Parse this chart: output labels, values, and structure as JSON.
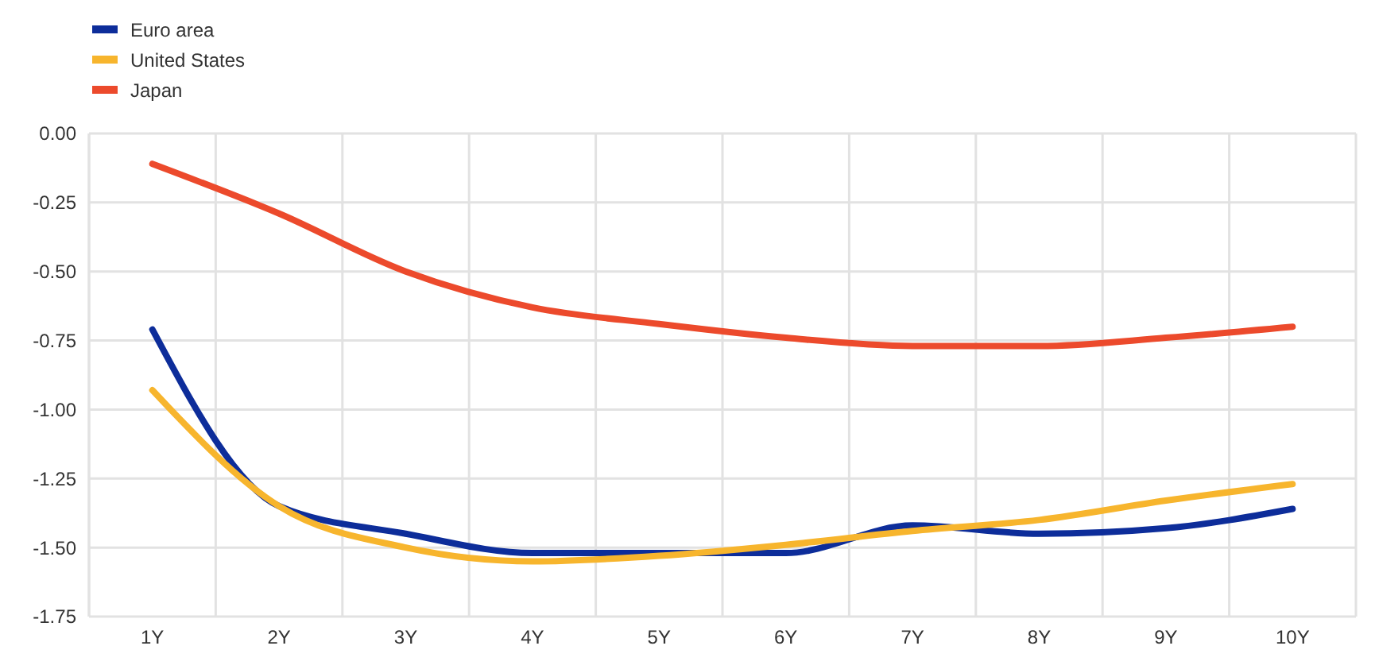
{
  "chart_data": {
    "type": "line",
    "categories": [
      "1Y",
      "2Y",
      "3Y",
      "4Y",
      "5Y",
      "6Y",
      "7Y",
      "8Y",
      "9Y",
      "10Y"
    ],
    "series": [
      {
        "name": "Euro area",
        "color": "#0d2d9a",
        "values": [
          -0.71,
          -1.35,
          -1.45,
          -1.52,
          -1.52,
          -1.52,
          -1.42,
          -1.45,
          -1.43,
          -1.36
        ]
      },
      {
        "name": "United States",
        "color": "#f7b52d",
        "values": [
          -0.93,
          -1.35,
          -1.5,
          -1.55,
          -1.53,
          -1.49,
          -1.44,
          -1.4,
          -1.33,
          -1.27
        ]
      },
      {
        "name": "Japan",
        "color": "#ec4a2c",
        "values": [
          -0.11,
          -0.29,
          -0.5,
          -0.63,
          -0.69,
          -0.74,
          -0.77,
          -0.77,
          -0.74,
          -0.7
        ]
      }
    ],
    "ylim": [
      -1.75,
      0
    ],
    "yticks": [
      {
        "value": 0,
        "label": "0.00"
      },
      {
        "value": -0.25,
        "label": "-0.25"
      },
      {
        "value": -0.5,
        "label": "-0.50"
      },
      {
        "value": -0.75,
        "label": "-0.75"
      },
      {
        "value": -1,
        "label": "-1.00"
      },
      {
        "value": -1.25,
        "label": "-1.25"
      },
      {
        "value": -1.5,
        "label": "-1.50"
      },
      {
        "value": -1.75,
        "label": "-1.75"
      }
    ],
    "grid": true,
    "legend": "top left",
    "marker": "none",
    "line_style": "solid"
  }
}
